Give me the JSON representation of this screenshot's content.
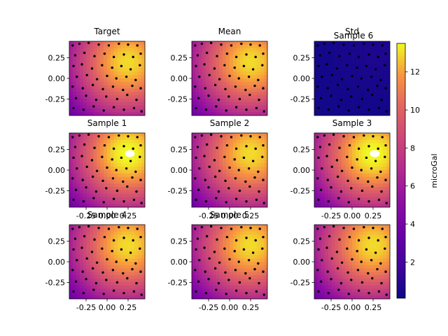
{
  "figure": {
    "colorbar": {
      "label": "microGal",
      "ticks": [
        2,
        4,
        6,
        8,
        10,
        12
      ],
      "vmin": 0.1,
      "vmax": 13.5,
      "colormap": "plasma"
    }
  },
  "chart_data": [
    {
      "type": "heatmap",
      "title": "Target",
      "xlim": [
        -0.45,
        0.45
      ],
      "ylim": [
        -0.45,
        0.45
      ],
      "xticks": [
        "-0.25",
        "0.00",
        "0.25"
      ],
      "yticks": [
        "0.25",
        "0.00",
        "-0.25"
      ],
      "show_xticks": false,
      "show_yticks": true,
      "field": {
        "peak_x": 0.25,
        "peak_y": 0.2,
        "peak": 13.0,
        "spread": 0.55,
        "base": 0.8
      }
    },
    {
      "type": "heatmap",
      "title": "Mean",
      "xlim": [
        -0.45,
        0.45
      ],
      "ylim": [
        -0.45,
        0.45
      ],
      "xticks": [
        "-0.25",
        "0.00",
        "0.25"
      ],
      "yticks": [
        "0.25",
        "0.00",
        "-0.25"
      ],
      "show_xticks": false,
      "show_yticks": true,
      "field": {
        "peak_x": 0.25,
        "peak_y": 0.2,
        "peak": 13.0,
        "spread": 0.55,
        "base": 0.8
      }
    },
    {
      "type": "heatmap",
      "title": "Std",
      "overlay_title": "Sample 6",
      "xlim": [
        -0.45,
        0.45
      ],
      "ylim": [
        -0.45,
        0.45
      ],
      "xticks": [
        "-0.25",
        "0.00",
        "0.25"
      ],
      "yticks": [
        "0.25",
        "0.00",
        "-0.25"
      ],
      "show_xticks": false,
      "show_yticks": true,
      "field": {
        "peak_x": 0.3,
        "peak_y": 0.3,
        "peak": 0.6,
        "spread": 0.3,
        "base": 0.3
      }
    },
    {
      "type": "heatmap",
      "title": "Sample 1",
      "xlim": [
        -0.45,
        0.45
      ],
      "ylim": [
        -0.45,
        0.45
      ],
      "xticks": [
        "-0.25",
        "0.00",
        "0.25"
      ],
      "yticks": [
        "0.25",
        "0.00",
        "-0.25"
      ],
      "show_xticks": true,
      "show_yticks": true,
      "blank_patch": true,
      "field": {
        "peak_x": 0.25,
        "peak_y": 0.2,
        "peak": 13.6,
        "spread": 0.55,
        "base": 0.8
      }
    },
    {
      "type": "heatmap",
      "title": "Sample 2",
      "xlim": [
        -0.45,
        0.45
      ],
      "ylim": [
        -0.45,
        0.45
      ],
      "xticks": [
        "-0.25",
        "0.00",
        "0.25"
      ],
      "yticks": [
        "0.25",
        "0.00",
        "-0.25"
      ],
      "show_xticks": true,
      "show_yticks": true,
      "field": {
        "peak_x": 0.25,
        "peak_y": 0.2,
        "peak": 13.0,
        "spread": 0.55,
        "base": 0.8
      }
    },
    {
      "type": "heatmap",
      "title": "Sample 3",
      "xlim": [
        -0.45,
        0.45
      ],
      "ylim": [
        -0.45,
        0.45
      ],
      "xticks": [
        "-0.25",
        "0.00",
        "0.25"
      ],
      "yticks": [
        "0.25",
        "0.00",
        "-0.25"
      ],
      "show_xticks": true,
      "show_yticks": true,
      "blank_patch": true,
      "field": {
        "peak_x": 0.25,
        "peak_y": 0.2,
        "peak": 13.6,
        "spread": 0.55,
        "base": 0.8
      }
    },
    {
      "type": "heatmap",
      "title": "Sample 4",
      "xlim": [
        -0.45,
        0.45
      ],
      "ylim": [
        -0.45,
        0.45
      ],
      "xticks": [
        "-0.25",
        "0.00",
        "0.25"
      ],
      "yticks": [
        "0.25",
        "0.00",
        "-0.25"
      ],
      "show_xticks": true,
      "show_yticks": true,
      "field": {
        "peak_x": 0.25,
        "peak_y": 0.2,
        "peak": 13.0,
        "spread": 0.55,
        "base": 0.8
      }
    },
    {
      "type": "heatmap",
      "title": "Sample 5",
      "xlim": [
        -0.45,
        0.45
      ],
      "ylim": [
        -0.45,
        0.45
      ],
      "xticks": [
        "-0.25",
        "0.00",
        "0.25"
      ],
      "yticks": [
        "0.25",
        "0.00",
        "-0.25"
      ],
      "show_xticks": true,
      "show_yticks": true,
      "field": {
        "peak_x": 0.25,
        "peak_y": 0.2,
        "peak": 13.0,
        "spread": 0.55,
        "base": 0.8
      }
    },
    {
      "type": "heatmap",
      "title": "",
      "xlim": [
        -0.45,
        0.45
      ],
      "ylim": [
        -0.45,
        0.45
      ],
      "xticks": [
        "-0.25",
        "0.00",
        "0.25"
      ],
      "yticks": [
        "0.25",
        "0.00",
        "-0.25"
      ],
      "show_xticks": true,
      "show_yticks": true,
      "field": {
        "peak_x": 0.25,
        "peak_y": 0.2,
        "peak": 13.0,
        "spread": 0.55,
        "base": 0.8
      }
    }
  ],
  "stations": [
    [
      -0.41,
      0.4
    ],
    [
      -0.33,
      0.42
    ],
    [
      -0.22,
      0.43
    ],
    [
      -0.1,
      0.41
    ],
    [
      0.02,
      0.4
    ],
    [
      0.14,
      0.42
    ],
    [
      0.25,
      0.41
    ],
    [
      0.36,
      0.4
    ],
    [
      -0.38,
      0.28
    ],
    [
      -0.27,
      0.31
    ],
    [
      -0.15,
      0.27
    ],
    [
      -0.03,
      0.3
    ],
    [
      0.08,
      0.26
    ],
    [
      0.2,
      0.29
    ],
    [
      0.31,
      0.26
    ],
    [
      0.4,
      0.3
    ],
    [
      -0.4,
      0.15
    ],
    [
      -0.3,
      0.17
    ],
    [
      -0.18,
      0.12
    ],
    [
      -0.06,
      0.16
    ],
    [
      0.06,
      0.13
    ],
    [
      0.17,
      0.15
    ],
    [
      0.28,
      0.11
    ],
    [
      0.39,
      0.16
    ],
    [
      -0.36,
      0.02
    ],
    [
      -0.24,
      0.04
    ],
    [
      -0.12,
      -0.01
    ],
    [
      0.0,
      0.03
    ],
    [
      0.11,
      0.0
    ],
    [
      0.23,
      0.02
    ],
    [
      0.34,
      -0.02
    ],
    [
      -0.41,
      -0.1
    ],
    [
      -0.29,
      -0.12
    ],
    [
      -0.17,
      -0.08
    ],
    [
      -0.05,
      -0.13
    ],
    [
      0.07,
      -0.1
    ],
    [
      0.19,
      -0.14
    ],
    [
      0.3,
      -0.09
    ],
    [
      0.4,
      -0.12
    ],
    [
      -0.37,
      -0.24
    ],
    [
      -0.25,
      -0.21
    ],
    [
      -0.13,
      -0.26
    ],
    [
      -0.01,
      -0.22
    ],
    [
      0.12,
      -0.25
    ],
    [
      0.24,
      -0.2
    ],
    [
      0.35,
      -0.26
    ],
    [
      -0.4,
      -0.36
    ],
    [
      -0.28,
      -0.38
    ],
    [
      -0.16,
      -0.34
    ],
    [
      -0.04,
      -0.39
    ],
    [
      0.08,
      -0.35
    ],
    [
      0.2,
      -0.38
    ],
    [
      0.32,
      -0.36
    ],
    [
      0.41,
      -0.4
    ]
  ]
}
